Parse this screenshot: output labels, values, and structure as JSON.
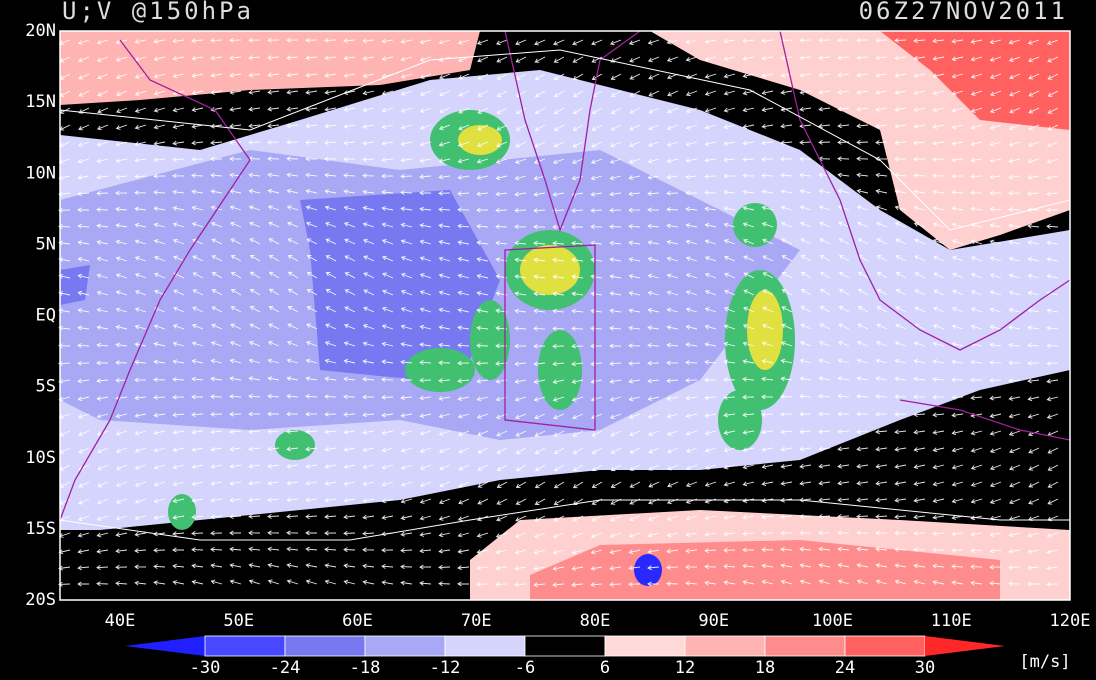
{
  "header": {
    "title": "U;V @150hPa",
    "time": "06Z27NOV2011"
  },
  "map": {
    "lat_labels": [
      "20N",
      "15N",
      "10N",
      "5N",
      "EQ",
      "5S",
      "10S",
      "15S",
      "20S"
    ],
    "lon_labels": [
      "40E",
      "50E",
      "60E",
      "70E",
      "80E",
      "90E",
      "100E",
      "110E",
      "120E"
    ]
  },
  "colorbar": {
    "ticks": [
      -30,
      -24,
      -18,
      -12,
      -6,
      6,
      12,
      18,
      24,
      30
    ],
    "colors": [
      "#2020ff",
      "#4848ff",
      "#7878f0",
      "#a8a8f4",
      "#d4d4fc",
      "#000000",
      "#ffd8d8",
      "#ffb4b4",
      "#ff8c8c",
      "#ff6060",
      "#ff2828"
    ],
    "units": "[m/s]"
  }
}
